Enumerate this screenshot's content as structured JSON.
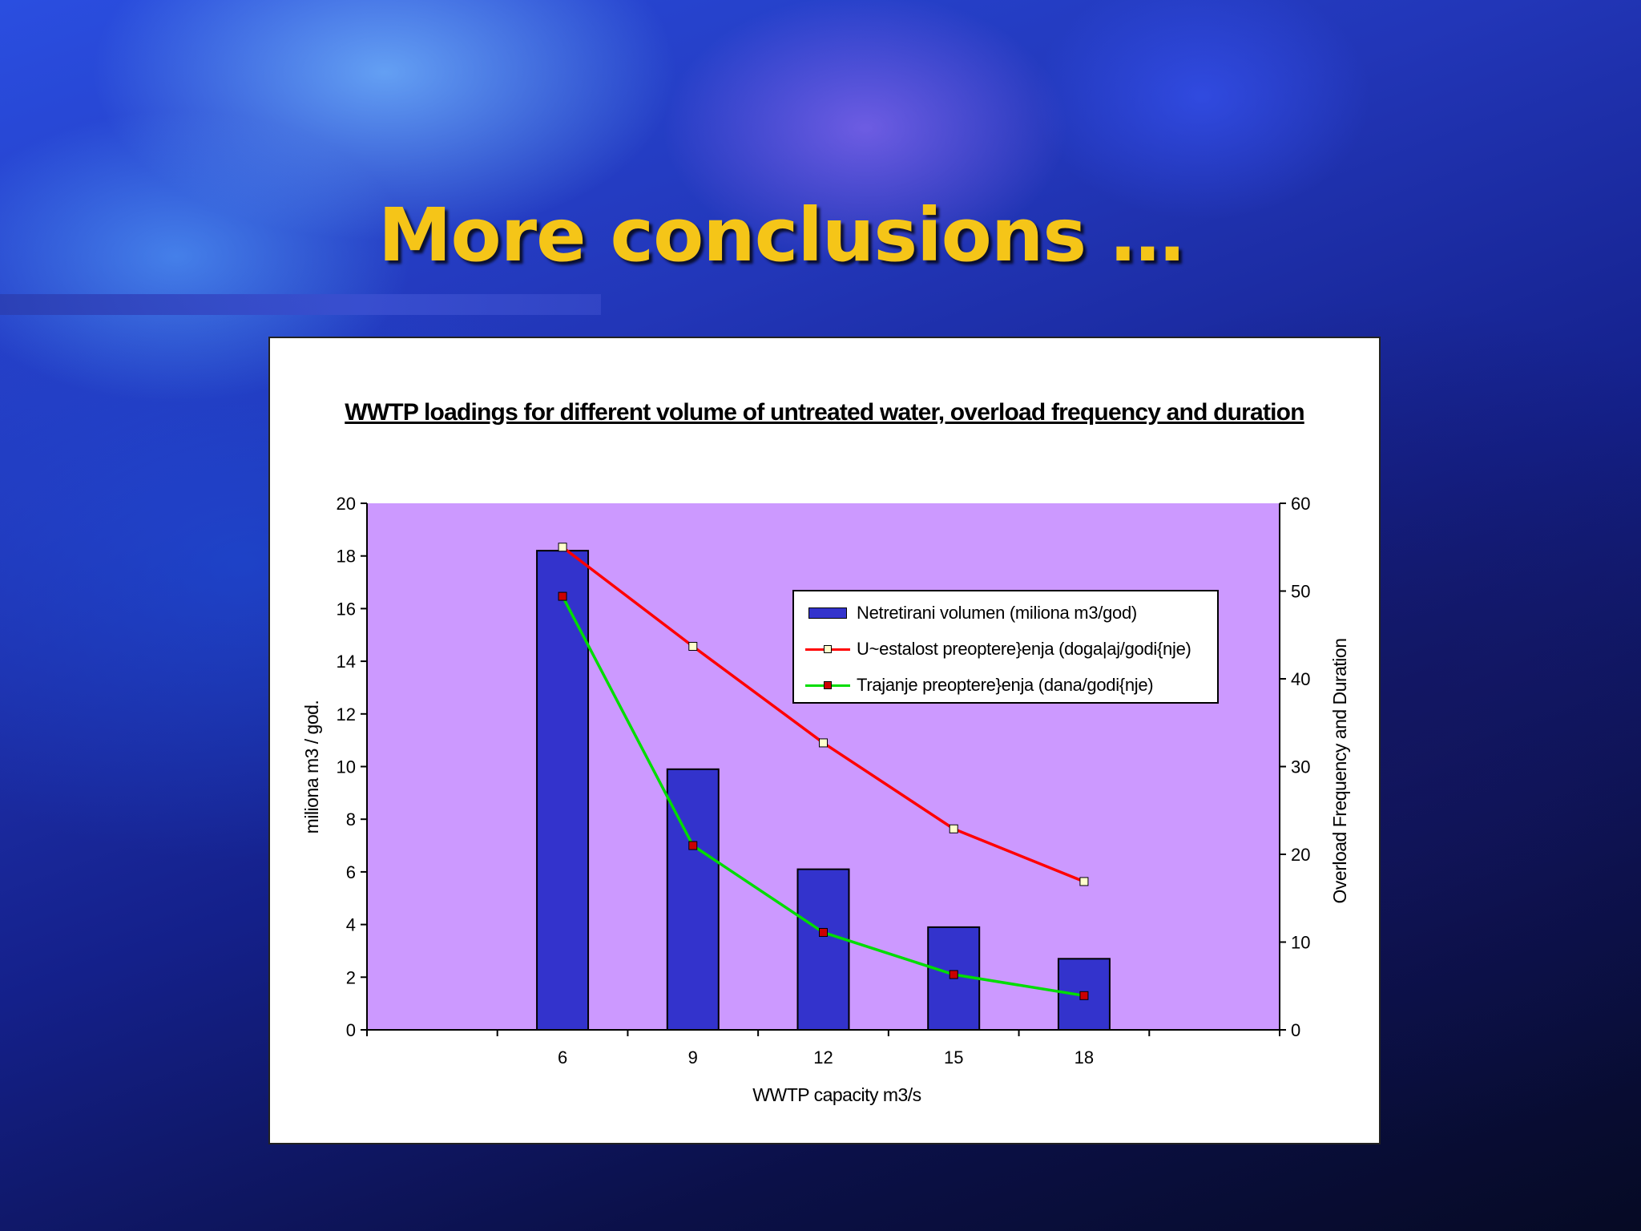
{
  "slide": {
    "title": "More conclusions …"
  },
  "chart_data": {
    "type": "bar",
    "title": "WWTP loadings for different volume of untreated water, overload frequency and duration",
    "xlabel": "WWTP capacity   m3/s",
    "ylabel": "miliona m3 / god.",
    "y2label": "Overload Frequency and Duration",
    "categories": [
      "6",
      "9",
      "12",
      "15",
      "18"
    ],
    "ylim": [
      0,
      20
    ],
    "y2lim": [
      0,
      60
    ],
    "yticks": [
      0,
      2,
      4,
      6,
      8,
      10,
      12,
      14,
      16,
      18,
      20
    ],
    "y2ticks": [
      0,
      10,
      20,
      30,
      40,
      50,
      60
    ],
    "grid": false,
    "legend_position": "top-right",
    "plot_background": "#cc99ff",
    "series": [
      {
        "name": "Netretirani volumen (miliona m3/god)",
        "type": "bar",
        "axis": "left",
        "color": "#3333cc",
        "values": [
          18.2,
          9.9,
          6.1,
          3.9,
          2.7
        ]
      },
      {
        "name": "U~estalost preoptere}enja (doga|aj/godi{nje)",
        "type": "line",
        "axis": "right",
        "color": "#ff0000",
        "marker_color": "#ffffcc",
        "values": [
          55,
          43.7,
          32.7,
          22.9,
          16.9
        ]
      },
      {
        "name": "Trajanje preoptere}enja (dana/godi{nje)",
        "type": "line",
        "axis": "right",
        "color": "#00dd00",
        "marker_color": "#cc0000",
        "values": [
          49.4,
          21,
          11.1,
          6.3,
          3.9
        ]
      }
    ]
  }
}
